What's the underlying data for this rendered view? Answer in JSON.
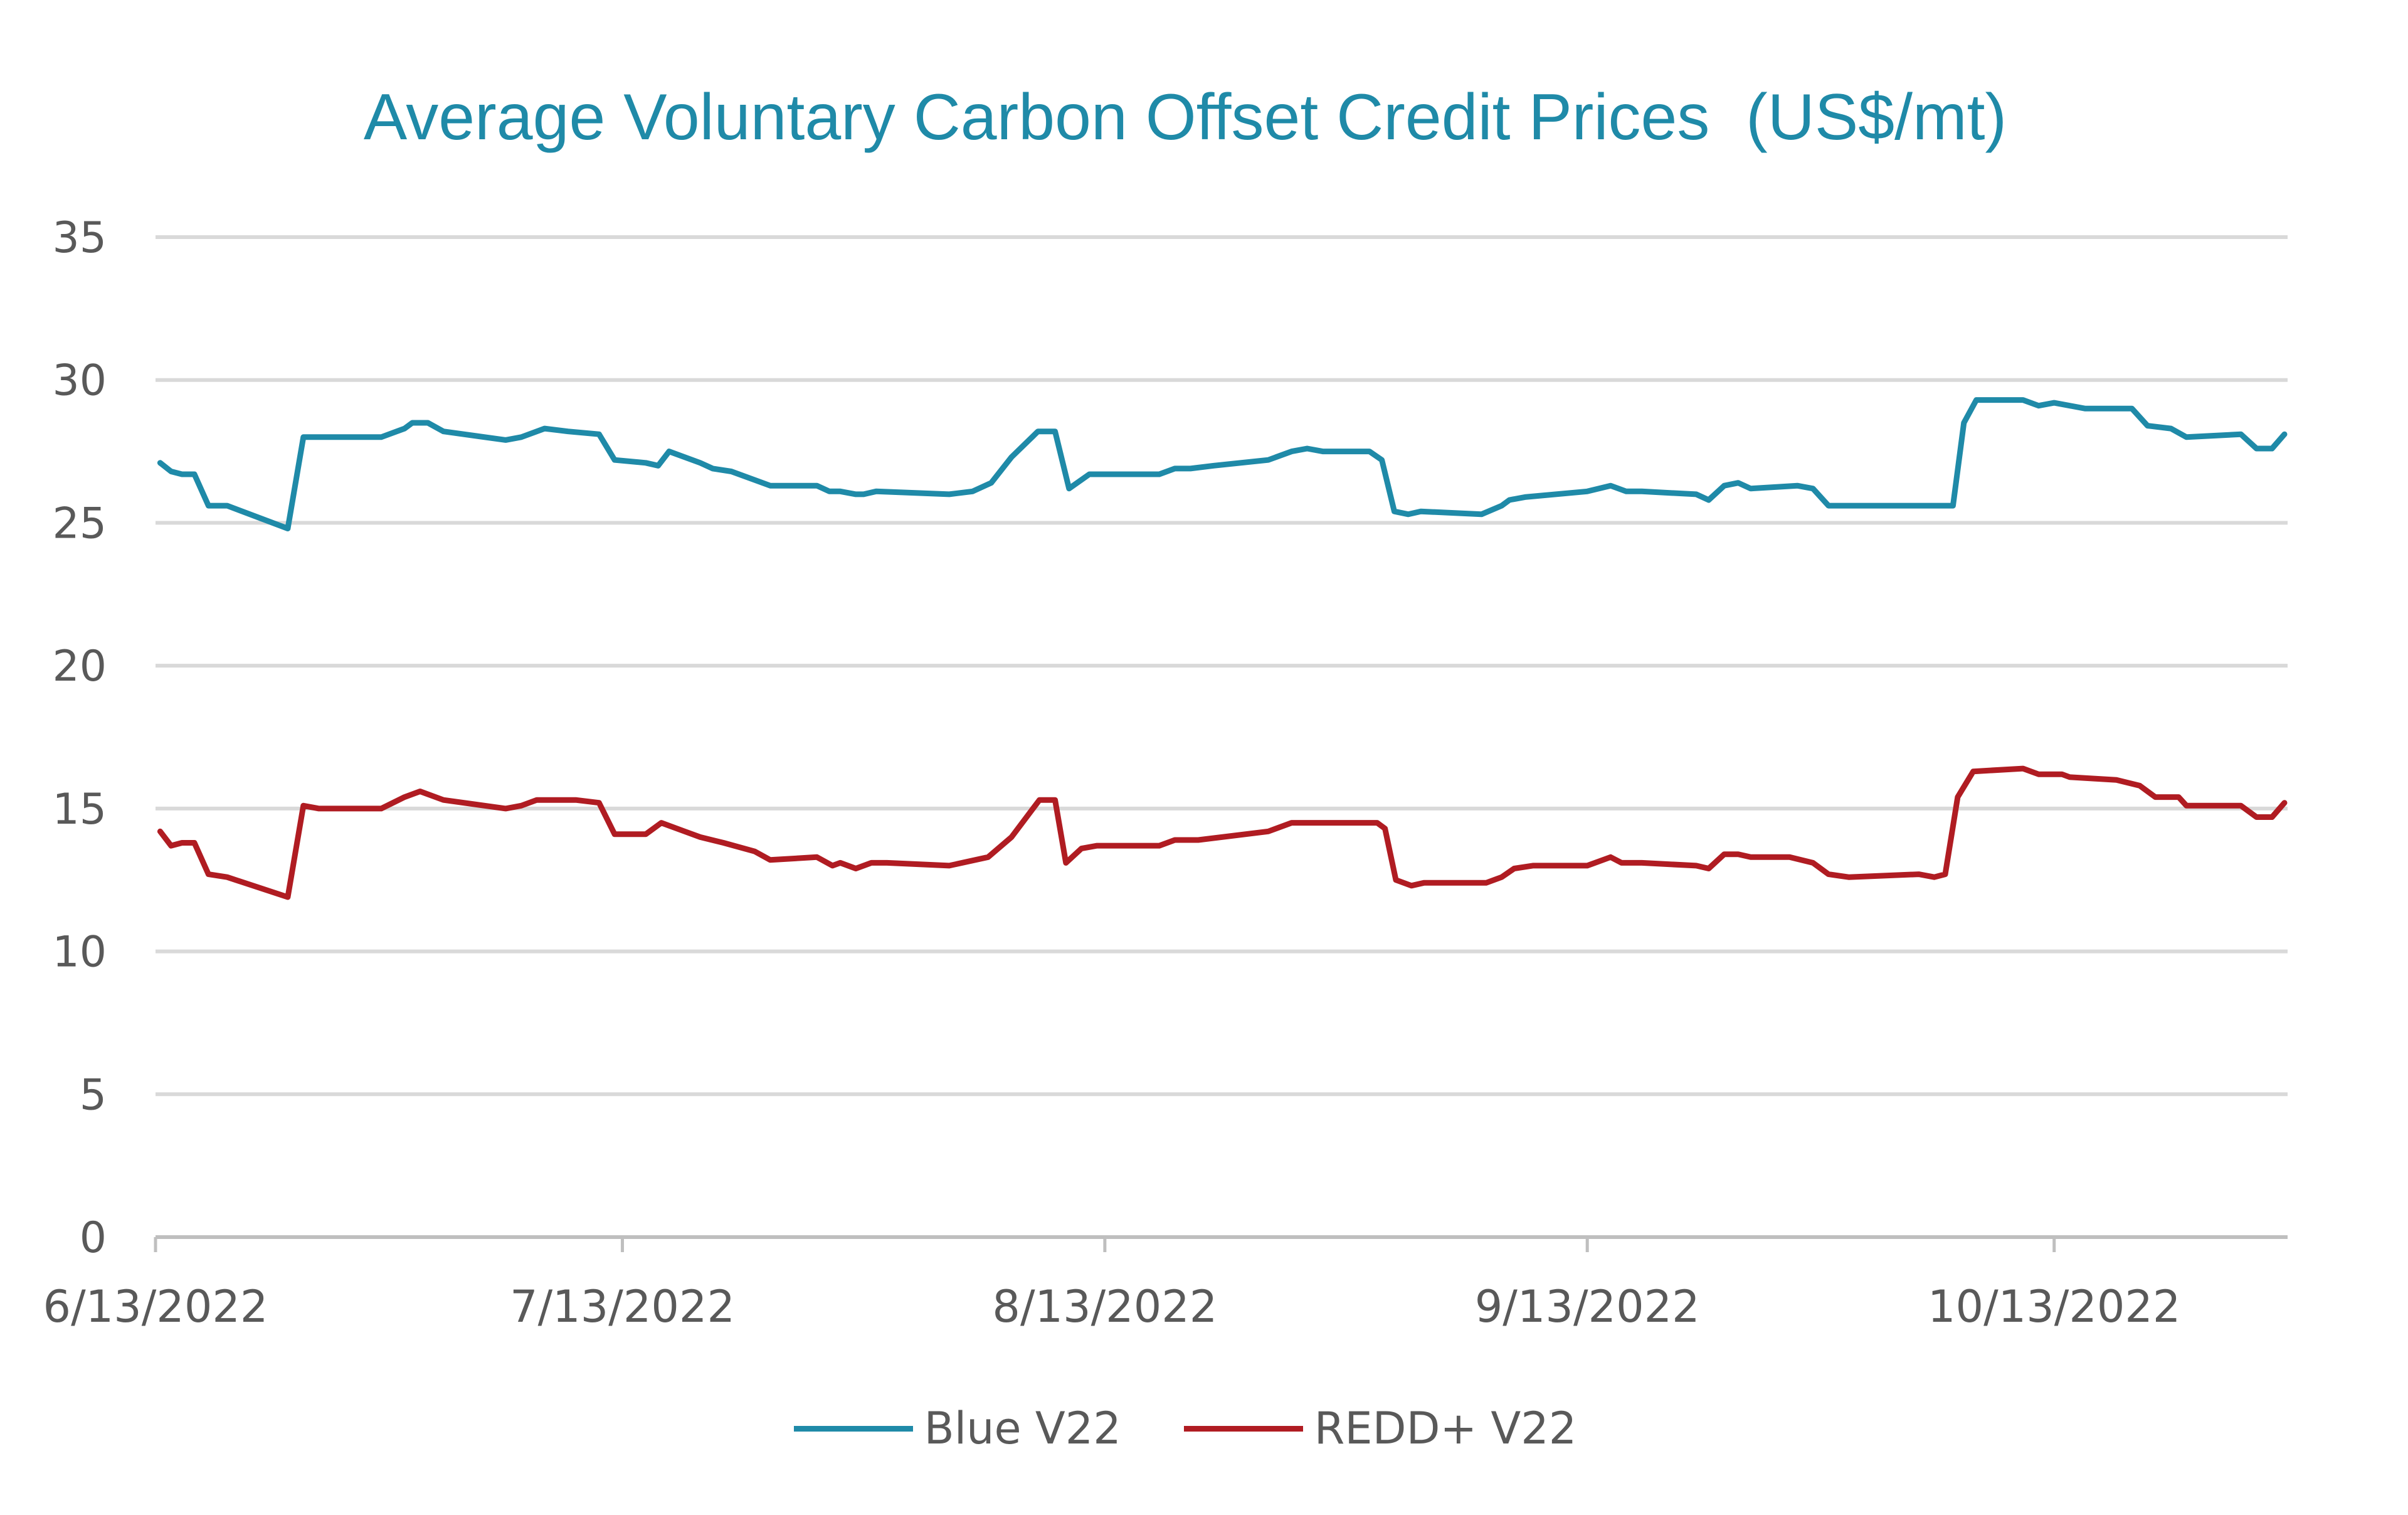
{
  "colors": {
    "blue_series": "#1f8aa8",
    "redd_series": "#b01c22",
    "grid": "#d9d9d9",
    "axis": "#bfbfbf",
    "tick_text": "#595959",
    "title": "#1f8aa8"
  },
  "chart_data": {
    "type": "line",
    "title": "Average Voluntary Carbon Offset Credit Prices  (US$/mt)",
    "xlabel": "",
    "ylabel": "",
    "ylim": [
      0,
      35
    ],
    "y_ticks": [
      "0",
      "5",
      "10",
      "15",
      "20",
      "25",
      "30",
      "35"
    ],
    "y_tick_values": [
      0,
      5,
      10,
      15,
      20,
      25,
      30,
      35
    ],
    "x_range_days": [
      0,
      137
    ],
    "x_ticks": [
      {
        "label": "6/13/2022",
        "day": 0
      },
      {
        "label": "7/13/2022",
        "day": 30
      },
      {
        "label": "8/13/2022",
        "day": 61
      },
      {
        "label": "9/13/2022",
        "day": 92
      },
      {
        "label": "10/13/2022",
        "day": 122
      }
    ],
    "grid": true,
    "legend_position": "bottom",
    "series": [
      {
        "name": "Blue V22",
        "points": [
          [
            0.3,
            27.1
          ],
          [
            1,
            26.8
          ],
          [
            1.7,
            26.7
          ],
          [
            2.5,
            26.7
          ],
          [
            3.4,
            25.6
          ],
          [
            4.6,
            25.6
          ],
          [
            8.5,
            24.8
          ],
          [
            9.5,
            28
          ],
          [
            14.5,
            28
          ],
          [
            16,
            28.3
          ],
          [
            16.5,
            28.5
          ],
          [
            17.5,
            28.5
          ],
          [
            18.5,
            28.2
          ],
          [
            22.5,
            27.9
          ],
          [
            23.5,
            28
          ],
          [
            25,
            28.3
          ],
          [
            26.5,
            28.2
          ],
          [
            28.5,
            28.1
          ],
          [
            29.5,
            27.2
          ],
          [
            31.5,
            27.1
          ],
          [
            32.3,
            27
          ],
          [
            33,
            27.5
          ],
          [
            35,
            27.1
          ],
          [
            35.8,
            26.9
          ],
          [
            37,
            26.8
          ],
          [
            39.5,
            26.3
          ],
          [
            42.5,
            26.3
          ],
          [
            43.3,
            26.1
          ],
          [
            44,
            26.1
          ],
          [
            45,
            26
          ],
          [
            45.5,
            26
          ],
          [
            46.3,
            26.1
          ],
          [
            51,
            26
          ],
          [
            52.5,
            26.1
          ],
          [
            53.7,
            26.4
          ],
          [
            55,
            27.3
          ],
          [
            56.7,
            28.2
          ],
          [
            57.8,
            28.2
          ],
          [
            58.7,
            26.2
          ],
          [
            60,
            26.7
          ],
          [
            64.5,
            26.7
          ],
          [
            65.5,
            26.9
          ],
          [
            66.5,
            26.9
          ],
          [
            68,
            27
          ],
          [
            71.5,
            27.2
          ],
          [
            73,
            27.5
          ],
          [
            74,
            27.6
          ],
          [
            75,
            27.5
          ],
          [
            78,
            27.5
          ],
          [
            78.8,
            27.2
          ],
          [
            79.6,
            25.4
          ],
          [
            80.5,
            25.3
          ],
          [
            81.3,
            25.4
          ],
          [
            85.2,
            25.3
          ],
          [
            86.5,
            25.6
          ],
          [
            87,
            25.8
          ],
          [
            88,
            25.9
          ],
          [
            92,
            26.1
          ],
          [
            93.5,
            26.3
          ],
          [
            94.5,
            26.1
          ],
          [
            95.5,
            26.1
          ],
          [
            99,
            26
          ],
          [
            99.8,
            25.8
          ],
          [
            100.8,
            26.3
          ],
          [
            101.7,
            26.4
          ],
          [
            102.5,
            26.2
          ],
          [
            105.5,
            26.3
          ],
          [
            106.5,
            26.2
          ],
          [
            107.5,
            25.6
          ],
          [
            115.5,
            25.6
          ],
          [
            116.2,
            28.5
          ],
          [
            117,
            29.3
          ],
          [
            120,
            29.3
          ],
          [
            121,
            29.1
          ],
          [
            122,
            29.2
          ],
          [
            123,
            29.1
          ],
          [
            124,
            29
          ],
          [
            127,
            29
          ],
          [
            128,
            28.4
          ],
          [
            129.5,
            28.3
          ],
          [
            130.5,
            28
          ],
          [
            134,
            28.1
          ],
          [
            135,
            27.6
          ],
          [
            136,
            27.6
          ],
          [
            136.8,
            28.1
          ]
        ]
      },
      {
        "name": "REDD+ V22",
        "points": [
          [
            0.3,
            14.2
          ],
          [
            1,
            13.7
          ],
          [
            1.7,
            13.8
          ],
          [
            2.5,
            13.8
          ],
          [
            3.4,
            12.7
          ],
          [
            4.6,
            12.6
          ],
          [
            8.5,
            11.9
          ],
          [
            9.5,
            15.1
          ],
          [
            10.5,
            15
          ],
          [
            14.5,
            15
          ],
          [
            16,
            15.4
          ],
          [
            17,
            15.6
          ],
          [
            18.5,
            15.3
          ],
          [
            22.5,
            15
          ],
          [
            23.5,
            15.1
          ],
          [
            24.5,
            15.3
          ],
          [
            27,
            15.3
          ],
          [
            28.5,
            15.2
          ],
          [
            29.5,
            14.1
          ],
          [
            31.5,
            14.1
          ],
          [
            32.5,
            14.5
          ],
          [
            34,
            14.2
          ],
          [
            35,
            14
          ],
          [
            36.5,
            13.8
          ],
          [
            38.5,
            13.5
          ],
          [
            39.5,
            13.2
          ],
          [
            42.5,
            13.3
          ],
          [
            43.5,
            13
          ],
          [
            44,
            13.1
          ],
          [
            45,
            12.9
          ],
          [
            46,
            13.1
          ],
          [
            47,
            13.1
          ],
          [
            51,
            13
          ],
          [
            53.5,
            13.3
          ],
          [
            55,
            14
          ],
          [
            56.8,
            15.3
          ],
          [
            57.8,
            15.3
          ],
          [
            58.5,
            13.1
          ],
          [
            59.5,
            13.6
          ],
          [
            60.5,
            13.7
          ],
          [
            64.5,
            13.7
          ],
          [
            65.5,
            13.9
          ],
          [
            67,
            13.9
          ],
          [
            71.5,
            14.2
          ],
          [
            73,
            14.5
          ],
          [
            77,
            14.5
          ],
          [
            78.5,
            14.5
          ],
          [
            79,
            14.3
          ],
          [
            79.7,
            12.5
          ],
          [
            80.7,
            12.3
          ],
          [
            81.5,
            12.4
          ],
          [
            85.5,
            12.4
          ],
          [
            86.5,
            12.6
          ],
          [
            87.3,
            12.9
          ],
          [
            88.5,
            13
          ],
          [
            92,
            13
          ],
          [
            93.5,
            13.3
          ],
          [
            94.2,
            13.1
          ],
          [
            95.5,
            13.1
          ],
          [
            99,
            13
          ],
          [
            99.8,
            12.9
          ],
          [
            100.8,
            13.4
          ],
          [
            101.7,
            13.4
          ],
          [
            102.5,
            13.3
          ],
          [
            105,
            13.3
          ],
          [
            106.5,
            13.1
          ],
          [
            107.5,
            12.7
          ],
          [
            108.8,
            12.6
          ],
          [
            113.3,
            12.7
          ],
          [
            114.3,
            12.6
          ],
          [
            115,
            12.7
          ],
          [
            115.8,
            15.4
          ],
          [
            116.8,
            16.3
          ],
          [
            120,
            16.4
          ],
          [
            121,
            16.2
          ],
          [
            122.5,
            16.2
          ],
          [
            123,
            16.1
          ],
          [
            126,
            16
          ],
          [
            127.5,
            15.8
          ],
          [
            128.5,
            15.4
          ],
          [
            130,
            15.4
          ],
          [
            130.5,
            15.1
          ],
          [
            134,
            15.1
          ],
          [
            135,
            14.7
          ],
          [
            136,
            14.7
          ],
          [
            136.8,
            15.2
          ]
        ]
      }
    ]
  }
}
